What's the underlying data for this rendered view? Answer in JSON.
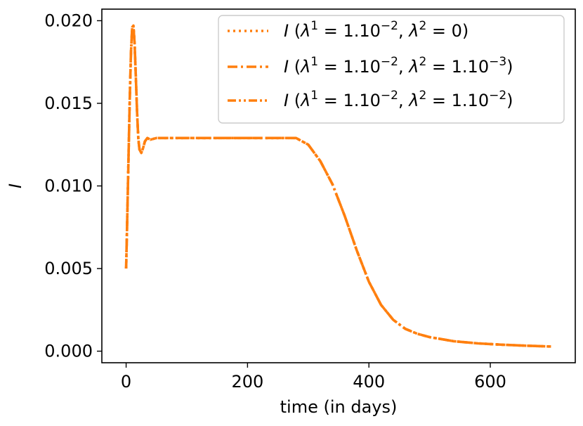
{
  "chart_data": {
    "type": "line",
    "title": "",
    "xlabel": "time (in days)",
    "ylabel": "I",
    "xlim": [
      -40,
      740
    ],
    "ylim": [
      -0.0007,
      0.0207
    ],
    "xticks": [
      0,
      200,
      400,
      600
    ],
    "xtick_labels": [
      "0",
      "200",
      "400",
      "600"
    ],
    "yticks": [
      0.0,
      0.005,
      0.01,
      0.015,
      0.02
    ],
    "ytick_labels": [
      "0.000",
      "0.005",
      "0.010",
      "0.015",
      "0.020"
    ],
    "grid": false,
    "legend_position": "top-right",
    "line_color": "#ff7f0e",
    "series": [
      {
        "name": "I (λ¹ = 1.10⁻², λ² = 0)",
        "legend": {
          "base": "I",
          "l1": "1.10",
          "l1_exp": "−2",
          "l2": "0",
          "l2_exp": ""
        },
        "style": "dotted",
        "x": [
          0,
          2,
          4,
          6,
          8,
          10,
          12,
          14,
          16,
          18,
          20,
          22,
          25,
          28,
          31,
          35,
          40,
          50,
          60,
          80,
          100,
          150,
          200,
          250,
          280,
          300,
          320,
          340,
          360,
          380,
          400,
          420,
          440,
          460,
          480,
          500,
          540,
          580,
          620,
          660,
          700
        ],
        "y": [
          0.005,
          0.0083,
          0.0118,
          0.0153,
          0.0181,
          0.0196,
          0.0197,
          0.0186,
          0.0166,
          0.0145,
          0.0129,
          0.0122,
          0.012,
          0.0123,
          0.0127,
          0.0129,
          0.0128,
          0.0129,
          0.0129,
          0.0129,
          0.0129,
          0.0129,
          0.0129,
          0.0129,
          0.0129,
          0.0125,
          0.0115,
          0.0101,
          0.0082,
          0.0061,
          0.0042,
          0.0028,
          0.0019,
          0.00135,
          0.00105,
          0.00085,
          0.0006,
          0.00047,
          0.00039,
          0.00033,
          0.00028
        ]
      },
      {
        "name": "I (λ¹ = 1.10⁻², λ² = 1.10⁻³)",
        "legend": {
          "base": "I",
          "l1": "1.10",
          "l1_exp": "−2",
          "l2": "1.10",
          "l2_exp": "−3"
        },
        "style": "dashdot",
        "x": [
          0,
          2,
          4,
          6,
          8,
          10,
          12,
          14,
          16,
          18,
          20,
          22,
          25,
          28,
          31,
          35,
          40,
          50,
          60,
          80,
          100,
          150,
          200,
          250,
          280,
          300,
          320,
          340,
          360,
          380,
          400,
          420,
          440,
          460,
          480,
          500,
          540,
          580,
          620,
          660,
          700
        ],
        "y": [
          0.005,
          0.0083,
          0.0118,
          0.0153,
          0.0181,
          0.0196,
          0.0197,
          0.0186,
          0.0166,
          0.0145,
          0.0129,
          0.0122,
          0.012,
          0.0123,
          0.0127,
          0.0129,
          0.0128,
          0.0129,
          0.0129,
          0.0129,
          0.0129,
          0.0129,
          0.0129,
          0.0129,
          0.0129,
          0.0125,
          0.0115,
          0.0101,
          0.0082,
          0.0061,
          0.0042,
          0.0028,
          0.0019,
          0.00135,
          0.00105,
          0.00085,
          0.0006,
          0.00047,
          0.00039,
          0.00033,
          0.00028
        ]
      },
      {
        "name": "I (λ¹ = 1.10⁻², λ² = 1.10⁻²)",
        "legend": {
          "base": "I",
          "l1": "1.10",
          "l1_exp": "−2",
          "l2": "1.10",
          "l2_exp": "−2"
        },
        "style": "dashdotdot",
        "x": [
          0,
          2,
          4,
          6,
          8,
          10,
          12,
          14,
          16,
          18,
          20,
          22,
          25,
          28,
          31,
          35,
          40,
          50,
          60,
          80,
          100,
          150,
          200,
          250,
          280,
          300,
          320,
          340,
          360,
          380,
          400,
          420,
          440,
          460,
          480,
          500,
          540,
          580,
          620,
          660,
          700
        ],
        "y": [
          0.005,
          0.0083,
          0.0118,
          0.0153,
          0.0181,
          0.0196,
          0.0197,
          0.0186,
          0.0166,
          0.0145,
          0.0129,
          0.0122,
          0.012,
          0.0123,
          0.0127,
          0.0129,
          0.0128,
          0.0129,
          0.0129,
          0.0129,
          0.0129,
          0.0129,
          0.0129,
          0.0129,
          0.0129,
          0.0125,
          0.0115,
          0.0101,
          0.0082,
          0.0061,
          0.0042,
          0.0028,
          0.0019,
          0.00135,
          0.00105,
          0.00085,
          0.0006,
          0.00047,
          0.00039,
          0.00033,
          0.00028
        ]
      }
    ]
  }
}
